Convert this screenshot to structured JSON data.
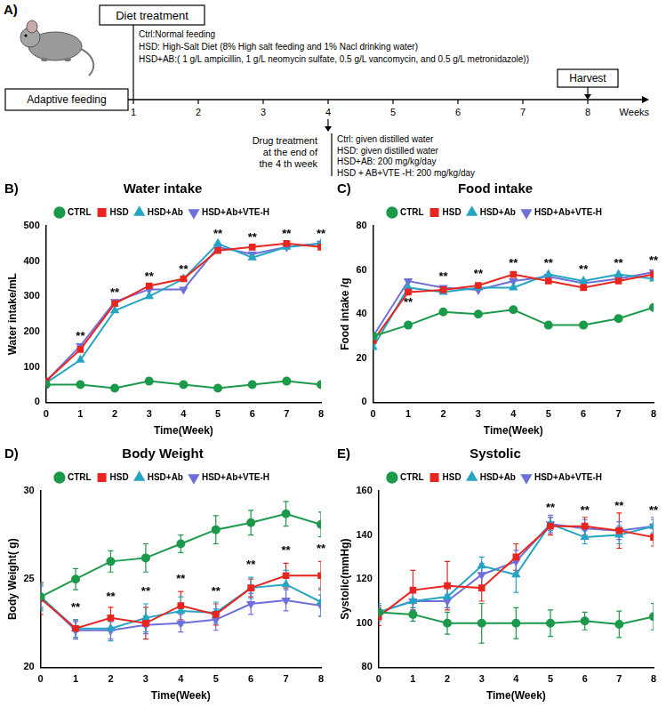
{
  "diagram": {
    "panel": "A)",
    "diet_box": "Diet treatment",
    "diet_lines": [
      "Ctrl:Normal feeding",
      "HSD:  High-Salt Diet (8% High salt feeding and 1% Nacl drinking water)",
      "HSD+AB:( 1 g/L ampicillin, 1 g/L neomycin sulfate, 0.5 g/L vancomycin, and 0.5 g/L metronidazole))"
    ],
    "adaptive": "Adaptive feeding",
    "harvest": "Harvest",
    "weeks": [
      1,
      2,
      3,
      4,
      5,
      6,
      7,
      8
    ],
    "weeks_label": "Weeks",
    "drug_title_lines": [
      "Drug treatment",
      "at the end of",
      "the 4 th week"
    ],
    "drug_lines": [
      "Ctrl: given distilled water",
      "HSD: given distilled water",
      "HSD+AB: 200 mg/kg/day",
      "HSD + AB+VTE -H: 200 mg/kg/day"
    ]
  },
  "chart_data": [
    {
      "panel": "B)",
      "type": "line",
      "title": "Water intake",
      "x_label": "Time(Week)",
      "y_label": "Water intake/mL",
      "x": [
        0,
        1,
        2,
        3,
        4,
        5,
        6,
        7,
        8
      ],
      "xlim": [
        0,
        8
      ],
      "xticks": [
        0,
        1,
        2,
        3,
        4,
        5,
        6,
        7,
        8
      ],
      "ylim": [
        0,
        500
      ],
      "yticks": [
        0,
        100,
        200,
        300,
        400,
        500
      ],
      "grid": false,
      "legend": "top",
      "series": [
        {
          "name": "CTRL",
          "color": "#1a9a4a",
          "marker": "circle",
          "values": [
            50,
            50,
            40,
            60,
            50,
            40,
            50,
            60,
            50
          ]
        },
        {
          "name": "HSD",
          "color": "#e8251f",
          "marker": "square",
          "values": [
            60,
            150,
            280,
            330,
            350,
            430,
            440,
            450,
            440
          ]
        },
        {
          "name": "HSD+Ab",
          "color": "#25a5c4",
          "marker": "triangle",
          "values": [
            55,
            120,
            260,
            300,
            350,
            450,
            410,
            440,
            450
          ]
        },
        {
          "name": "HSD+Ab+VTE-H",
          "color": "#6f6fdc",
          "marker": "triangle-down",
          "values": [
            60,
            160,
            285,
            320,
            320,
            440,
            420,
            440,
            450
          ]
        }
      ],
      "annotations": [
        {
          "text": "**",
          "x": 1,
          "y": 186
        },
        {
          "text": "**",
          "x": 2,
          "y": 311
        },
        {
          "text": "**",
          "x": 3,
          "y": 356
        },
        {
          "text": "**",
          "x": 4,
          "y": 376
        },
        {
          "text": "**",
          "x": 5,
          "y": 476
        },
        {
          "text": "**",
          "x": 6,
          "y": 466
        },
        {
          "text": "**",
          "x": 7,
          "y": 476
        },
        {
          "text": "**",
          "x": 8,
          "y": 476
        }
      ]
    },
    {
      "panel": "C)",
      "type": "line",
      "title": "Food intake",
      "x_label": "Time(Week)",
      "y_label": "Food intake /g",
      "x": [
        0,
        1,
        2,
        3,
        4,
        5,
        6,
        7,
        8
      ],
      "xlim": [
        0,
        8
      ],
      "xticks": [
        0,
        1,
        2,
        3,
        4,
        5,
        6,
        7,
        8
      ],
      "ylim": [
        0,
        80
      ],
      "yticks": [
        0,
        20,
        40,
        60,
        80
      ],
      "grid": false,
      "legend": "top",
      "series": [
        {
          "name": "CTRL",
          "color": "#1a9a4a",
          "marker": "circle",
          "values": [
            30,
            35,
            41,
            40,
            42,
            35,
            35,
            38,
            43
          ]
        },
        {
          "name": "HSD",
          "color": "#e8251f",
          "marker": "square",
          "values": [
            28,
            50,
            51,
            53,
            58,
            55,
            52,
            55,
            58
          ]
        },
        {
          "name": "HSD+Ab",
          "color": "#25a5c4",
          "marker": "triangle",
          "values": [
            25,
            52,
            50,
            52,
            52,
            58,
            55,
            58,
            56
          ]
        },
        {
          "name": "HSD+Ab+VTE-H",
          "color": "#6f6fdc",
          "marker": "triangle-down",
          "values": [
            30,
            55,
            52,
            51,
            55,
            57,
            54,
            56,
            59
          ]
        }
      ],
      "annotations": [
        {
          "text": "**",
          "x": 1,
          "y": 45
        },
        {
          "text": "**",
          "x": 2,
          "y": 57
        },
        {
          "text": "**",
          "x": 3,
          "y": 58
        },
        {
          "text": "**",
          "x": 4,
          "y": 63
        },
        {
          "text": "**",
          "x": 5,
          "y": 63
        },
        {
          "text": "**",
          "x": 6,
          "y": 60
        },
        {
          "text": "**",
          "x": 7,
          "y": 63
        },
        {
          "text": "**",
          "x": 8,
          "y": 64
        }
      ]
    },
    {
      "panel": "D)",
      "type": "line",
      "title": "Body Weight",
      "x_label": "Time(Week)",
      "y_label": "Body Weight( g)",
      "x": [
        0,
        1,
        2,
        3,
        4,
        5,
        6,
        7,
        8
      ],
      "xlim": [
        0,
        8
      ],
      "xticks": [
        0,
        1,
        2,
        3,
        4,
        5,
        6,
        7,
        8
      ],
      "ylim": [
        20,
        30
      ],
      "yticks": [
        20,
        25,
        30
      ],
      "grid": false,
      "legend": "top",
      "series": [
        {
          "name": "CTRL",
          "color": "#1a9a4a",
          "marker": "circle",
          "values": [
            24,
            25,
            26,
            26.2,
            27,
            27.8,
            28.2,
            28.7,
            28.1
          ],
          "errors": [
            0.7,
            0.6,
            0.6,
            0.8,
            0.5,
            0.8,
            0.7,
            0.7,
            0.7
          ]
        },
        {
          "name": "HSD",
          "color": "#e8251f",
          "marker": "square",
          "values": [
            23.9,
            22.2,
            22.8,
            22.5,
            23.5,
            23.0,
            24.5,
            25.2,
            25.2
          ],
          "errors": [
            0.9,
            0.5,
            0.6,
            0.9,
            0.8,
            0.6,
            0.5,
            0.7,
            0.8
          ]
        },
        {
          "name": "HSD+Ab",
          "color": "#25a5c4",
          "marker": "triangle",
          "values": [
            24,
            22.2,
            22.2,
            22.8,
            23.2,
            23.1,
            24.5,
            24.7,
            23.7
          ],
          "errors": [
            0.8,
            0.5,
            0.7,
            0.8,
            0.8,
            0.6,
            0.6,
            0.8,
            0.8
          ]
        },
        {
          "name": "HSD+Ab+VTE-H",
          "color": "#6f6fdc",
          "marker": "triangle-down",
          "values": [
            24,
            22.1,
            22.1,
            22.4,
            22.5,
            22.7,
            23.6,
            23.8,
            23.5
          ],
          "errors": [
            0.6,
            0.5,
            0.5,
            0.5,
            0.5,
            0.6,
            0.6,
            0.6,
            0.6
          ]
        }
      ],
      "annotations": [
        {
          "text": "**",
          "x": 1,
          "y": 23.4
        },
        {
          "text": "**",
          "x": 2,
          "y": 24.0
        },
        {
          "text": "**",
          "x": 3,
          "y": 24.3
        },
        {
          "text": "**",
          "x": 4,
          "y": 25.0
        },
        {
          "text": "**",
          "x": 5,
          "y": 24.3
        },
        {
          "text": "**",
          "x": 6,
          "y": 25.8
        },
        {
          "text": "**",
          "x": 7,
          "y": 26.6
        },
        {
          "text": "**",
          "x": 8,
          "y": 26.7
        }
      ]
    },
    {
      "panel": "E)",
      "type": "line",
      "title": "Systolic",
      "x_label": "Time(Week)",
      "y_label": "Systolic(mmHg)",
      "x": [
        0,
        1,
        2,
        3,
        4,
        5,
        6,
        7,
        8
      ],
      "xlim": [
        0,
        8
      ],
      "xticks": [
        0,
        1,
        2,
        3,
        4,
        5,
        6,
        7,
        8
      ],
      "ylim": [
        80,
        160
      ],
      "yticks": [
        80,
        100,
        120,
        140,
        160
      ],
      "grid": false,
      "legend": "top",
      "series": [
        {
          "name": "CTRL",
          "color": "#1a9a4a",
          "marker": "circle",
          "values": [
            105,
            104,
            100,
            100,
            100,
            100,
            101,
            99.5,
            103
          ],
          "errors": [
            3,
            3,
            5,
            9,
            7,
            6,
            4,
            6,
            6
          ]
        },
        {
          "name": "HSD",
          "color": "#e8251f",
          "marker": "square",
          "values": [
            103,
            115,
            117,
            116,
            130,
            144,
            144,
            142,
            139
          ],
          "errors": [
            4,
            9,
            11,
            6,
            6,
            4,
            4,
            8,
            4
          ]
        },
        {
          "name": "HSD+Ab",
          "color": "#25a5c4",
          "marker": "triangle",
          "values": [
            105,
            110,
            112,
            126,
            122,
            145,
            139,
            140,
            144
          ],
          "errors": [
            4,
            6,
            5,
            4,
            8,
            3,
            3,
            4,
            3
          ]
        },
        {
          "name": "HSD+Ab+VTE-H",
          "color": "#6f6fdc",
          "marker": "triangle-down",
          "values": [
            105,
            110,
            110,
            122,
            128,
            145,
            143,
            142,
            144
          ],
          "errors": [
            3,
            4,
            3,
            5,
            5,
            4,
            4,
            4,
            4
          ]
        }
      ],
      "annotations": [
        {
          "text": "**",
          "x": 5,
          "y": 152
        },
        {
          "text": "**",
          "x": 6,
          "y": 151
        },
        {
          "text": "**",
          "x": 7,
          "y": 153
        },
        {
          "text": "**",
          "x": 8,
          "y": 151
        }
      ]
    }
  ]
}
